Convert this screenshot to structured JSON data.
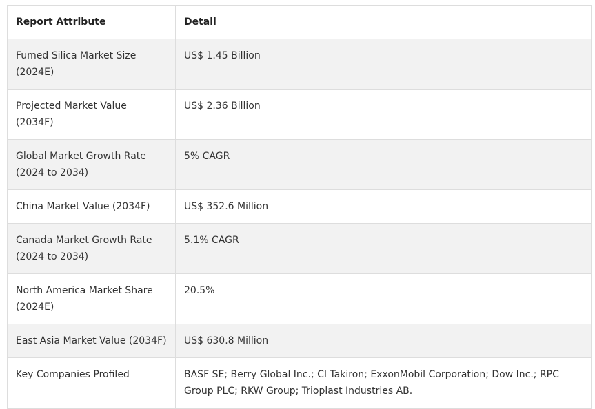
{
  "table": {
    "headers": {
      "attribute": "Report Attribute",
      "detail": "Detail"
    },
    "rows": [
      {
        "attribute": "Fumed Silica Market Size (2024E)",
        "detail": "US$ 1.45 Billion"
      },
      {
        "attribute": "Projected Market Value (2034F)",
        "detail": "US$ 2.36 Billion"
      },
      {
        "attribute": "Global Market Growth Rate (2024 to 2034)",
        "detail": "5% CAGR"
      },
      {
        "attribute": "China Market Value (2034F)",
        "detail": "US$ 352.6 Million"
      },
      {
        "attribute": "Canada Market Growth Rate (2024 to 2034)",
        "detail": "5.1% CAGR"
      },
      {
        "attribute": "North America Market Share (2024E)",
        "detail": "20.5%"
      },
      {
        "attribute": "East Asia Market Value (2034F)",
        "detail": "US$ 630.8 Million"
      },
      {
        "attribute": "Key Companies Profiled",
        "detail": "BASF SE; Berry Global Inc.; CI Takiron; ExxonMobil Corporation; Dow Inc.; RPC Group PLC; RKW Group; Trioplast Industries AB."
      }
    ]
  },
  "colors": {
    "row_shade": "#f2f2f2",
    "border": "#dddddd",
    "text": "#333333"
  }
}
